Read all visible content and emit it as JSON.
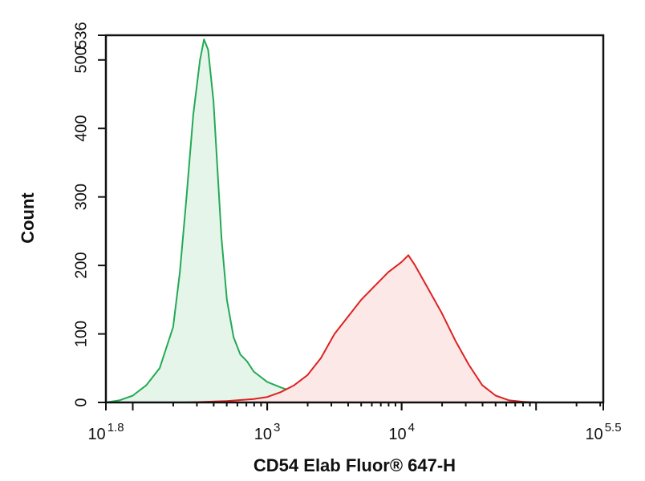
{
  "chart_data": {
    "type": "area",
    "title": "",
    "xlabel": "CD54 Elab Fluor® 647-H",
    "ylabel": "Count",
    "x_scale": "log10",
    "xlim": [
      1.8,
      5.5
    ],
    "ylim": [
      0,
      536
    ],
    "y_ticks": [
      {
        "value": 0,
        "label": "0"
      },
      {
        "value": 100,
        "label": "100"
      },
      {
        "value": 200,
        "label": "200"
      },
      {
        "value": 300,
        "label": "300"
      },
      {
        "value": 400,
        "label": "400"
      },
      {
        "value": 500,
        "label": "500"
      },
      {
        "value": 536,
        "label": "536"
      }
    ],
    "x_ticks": [
      {
        "value": 1.8,
        "base": "10",
        "exp": "1.8"
      },
      {
        "value": 3,
        "base": "10",
        "exp": "3"
      },
      {
        "value": 4,
        "base": "10",
        "exp": "4"
      },
      {
        "value": 5.5,
        "base": "10",
        "exp": "5.5"
      }
    ],
    "grid": false,
    "series": [
      {
        "color": "#22aa55",
        "fill": "#e6f5ea",
        "x": [
          1.8,
          1.9,
          2.0,
          2.1,
          2.2,
          2.3,
          2.35,
          2.4,
          2.45,
          2.5,
          2.53,
          2.56,
          2.6,
          2.63,
          2.66,
          2.7,
          2.75,
          2.8,
          2.85,
          2.9,
          3.0,
          3.1,
          3.2,
          3.3,
          3.4,
          3.5,
          3.6,
          3.7
        ],
        "y": [
          0,
          3,
          10,
          25,
          50,
          110,
          190,
          300,
          420,
          500,
          530,
          515,
          440,
          340,
          240,
          150,
          95,
          70,
          60,
          45,
          30,
          22,
          15,
          12,
          8,
          5,
          3,
          0
        ]
      },
      {
        "color": "#dd2222",
        "fill": "#fde8e8",
        "x": [
          2.4,
          2.7,
          2.9,
          3.0,
          3.1,
          3.2,
          3.3,
          3.4,
          3.5,
          3.6,
          3.7,
          3.8,
          3.9,
          4.0,
          4.05,
          4.1,
          4.2,
          4.3,
          4.4,
          4.5,
          4.6,
          4.7,
          4.8,
          4.9,
          5.0
        ],
        "y": [
          0,
          2,
          5,
          8,
          15,
          25,
          40,
          65,
          100,
          125,
          150,
          170,
          190,
          205,
          215,
          200,
          165,
          130,
          90,
          55,
          25,
          10,
          3,
          1,
          0
        ]
      }
    ]
  }
}
